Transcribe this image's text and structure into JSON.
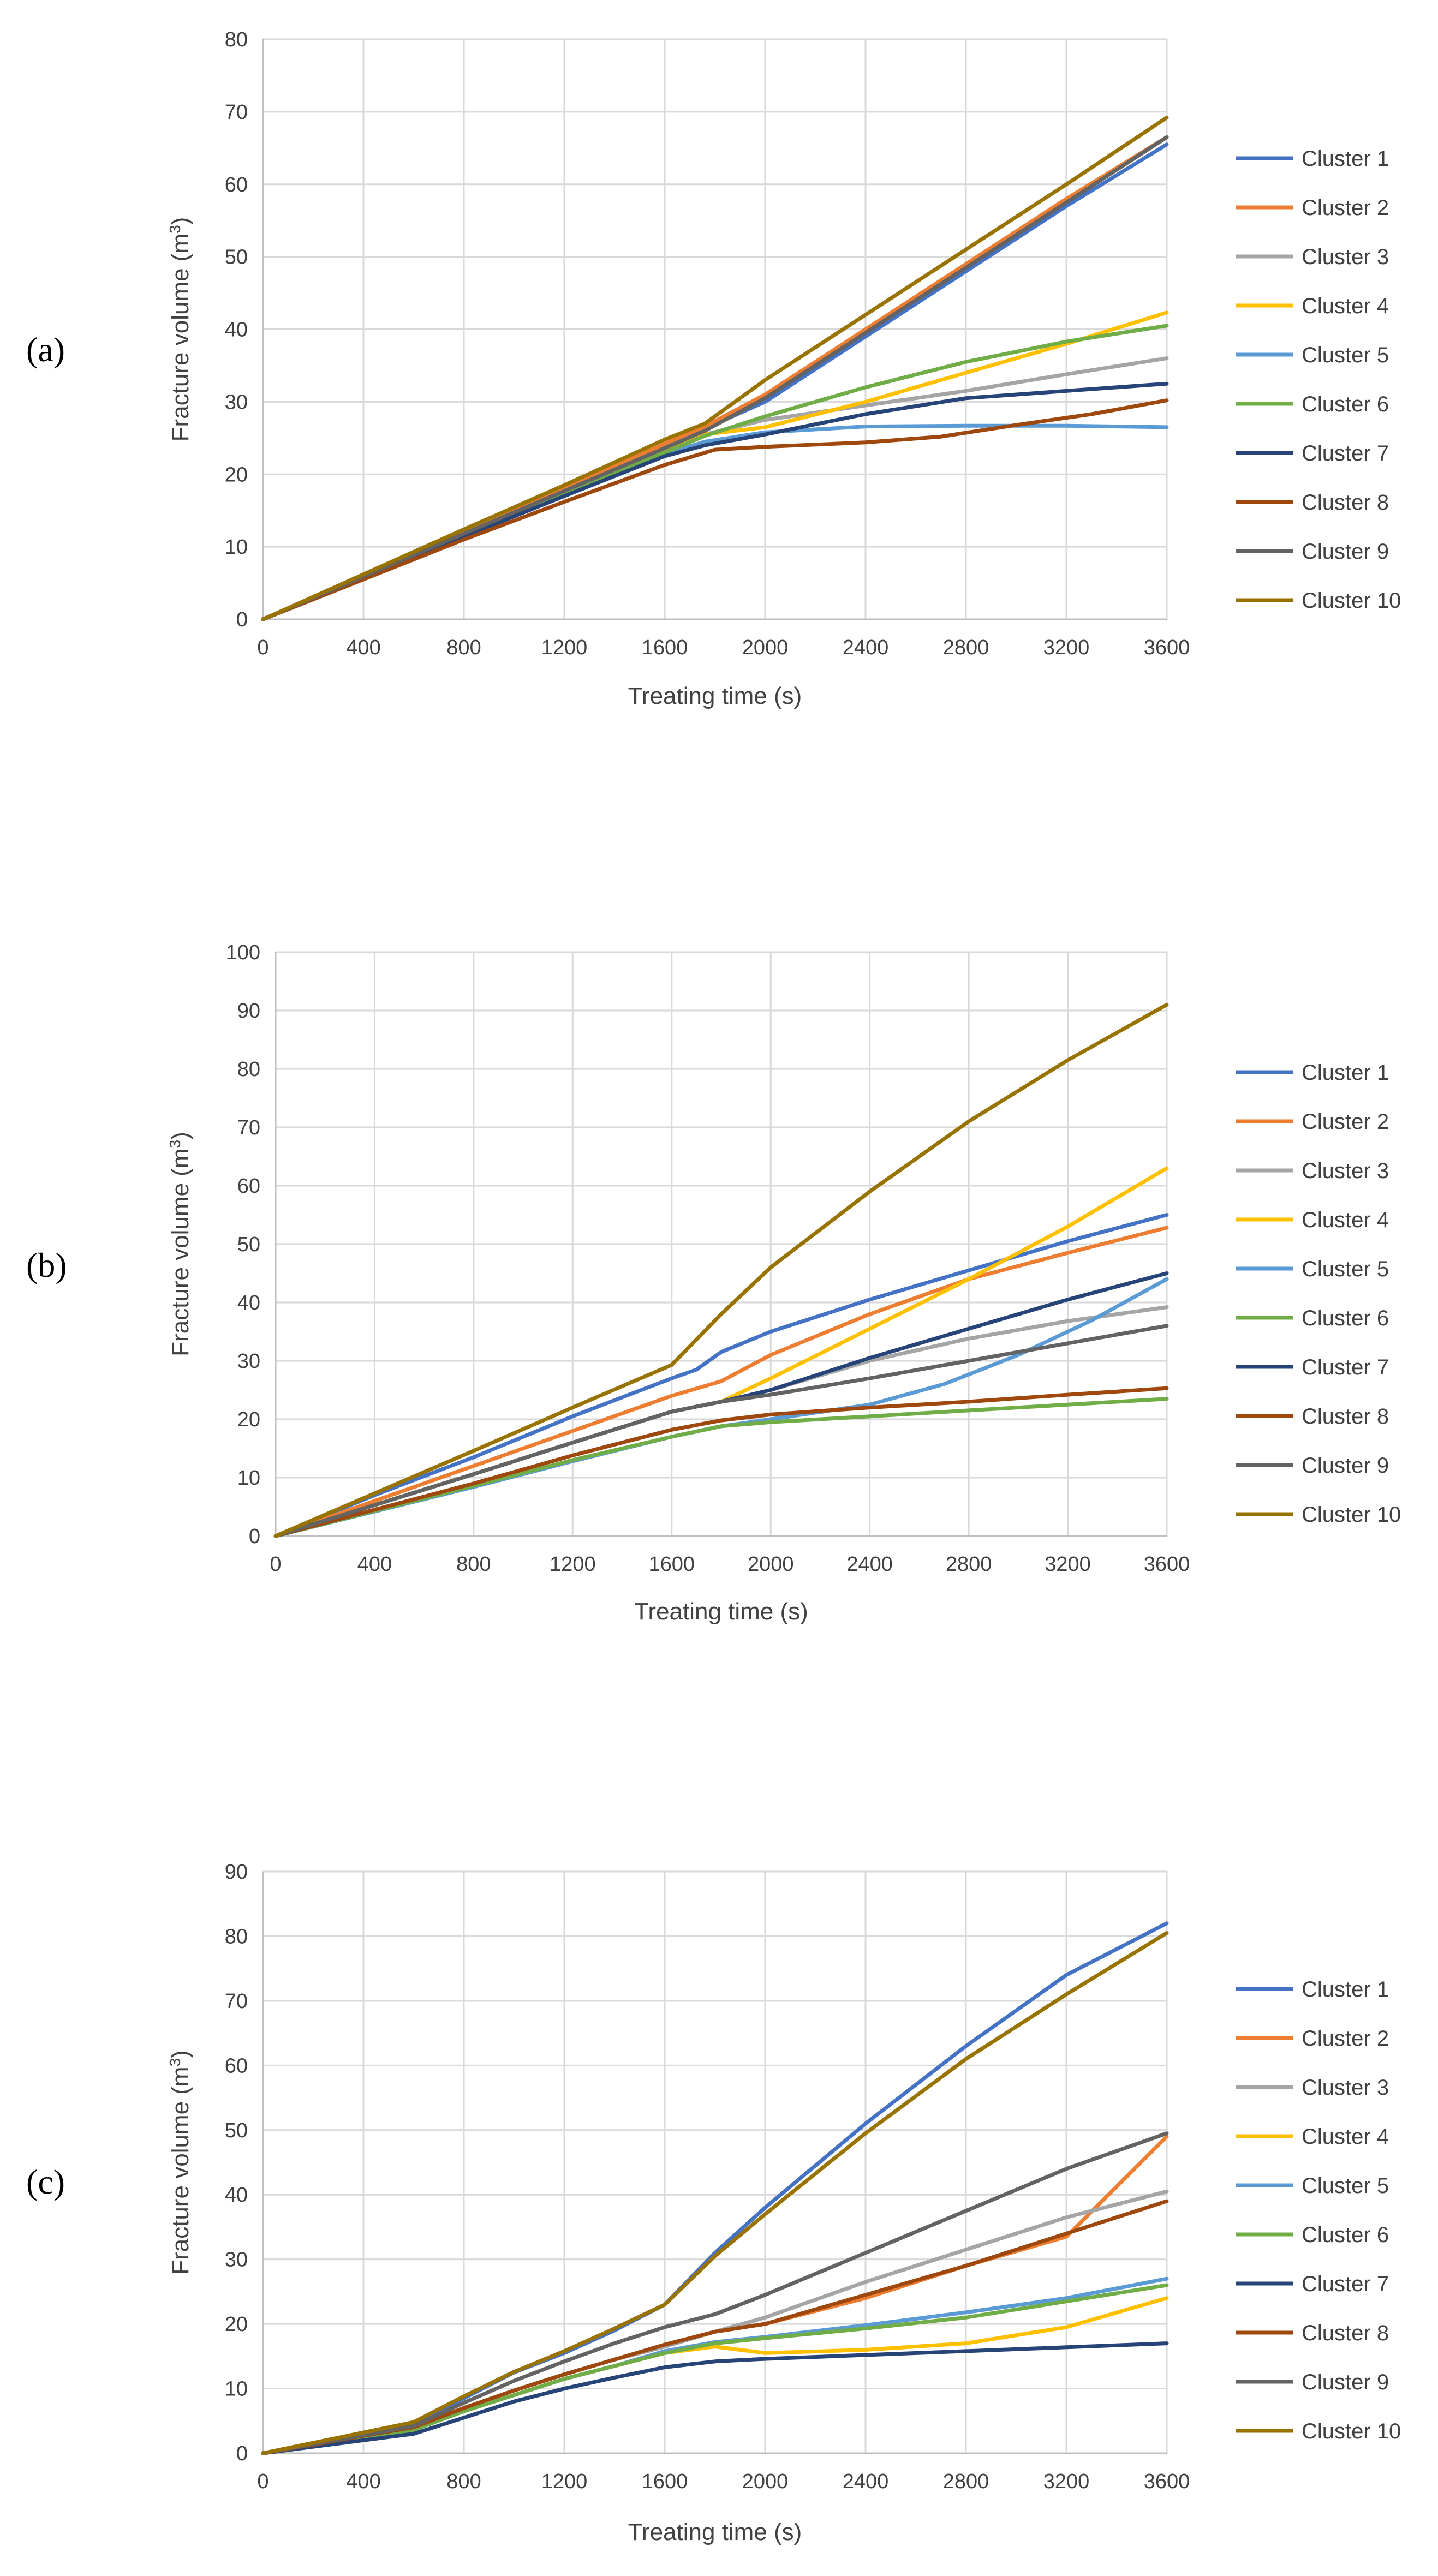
{
  "colors": {
    "grid": "#d9d9d9",
    "axis": "#bfbfbf",
    "series": [
      "#4472c4",
      "#ed7d31",
      "#a5a5a5",
      "#ffc000",
      "#5b9bd5",
      "#70ad47",
      "#264478",
      "#9e480e",
      "#636363",
      "#997300"
    ]
  },
  "chart_data": [
    {
      "panel": "(a)",
      "type": "line",
      "xlabel": "Treating time (s)",
      "ylabel": "Fracture volume (m",
      "ylabel_sup": "3",
      "ylabel_end": ")",
      "xlim": [
        0,
        3600
      ],
      "ylim": [
        0,
        80
      ],
      "xticks": [
        0,
        400,
        800,
        1200,
        1600,
        2000,
        2400,
        2800,
        3200,
        3600
      ],
      "yticks": [
        0,
        10,
        20,
        30,
        40,
        50,
        60,
        70,
        80
      ],
      "series": [
        {
          "name": "Cluster 1",
          "x": [
            0,
            400,
            800,
            1200,
            1600,
            1760,
            2000,
            2400,
            2800,
            3200,
            3600
          ],
          "values": [
            0,
            6,
            12,
            18,
            24,
            26.3,
            30,
            39,
            48,
            57,
            65.5
          ]
        },
        {
          "name": "Cluster 2",
          "x": [
            0,
            400,
            800,
            1200,
            1600,
            1760,
            2000,
            2400,
            2800,
            3200,
            3600
          ],
          "values": [
            0,
            6,
            12,
            18,
            24.2,
            26.6,
            31,
            40,
            49,
            58,
            66.5
          ]
        },
        {
          "name": "Cluster 3",
          "x": [
            0,
            400,
            800,
            1200,
            1600,
            1760,
            2000,
            2400,
            2800,
            3200,
            3600
          ],
          "values": [
            0,
            5.8,
            11.7,
            17.5,
            23.3,
            25.5,
            27.5,
            29.5,
            31.5,
            33.8,
            36
          ]
        },
        {
          "name": "Cluster 4",
          "x": [
            0,
            400,
            800,
            1200,
            1600,
            1760,
            2000,
            2400,
            2800,
            3200,
            3600
          ],
          "values": [
            0,
            5.8,
            11.7,
            17.5,
            23.3,
            25.5,
            26.5,
            30,
            34,
            38,
            42.3
          ]
        },
        {
          "name": "Cluster 5",
          "x": [
            0,
            400,
            800,
            1200,
            1600,
            1760,
            2000,
            2400,
            2800,
            3200,
            3600
          ],
          "values": [
            0,
            5.7,
            11.5,
            17.2,
            22.8,
            24.5,
            25.8,
            26.6,
            26.7,
            26.7,
            26.5
          ]
        },
        {
          "name": "Cluster 6",
          "x": [
            0,
            400,
            800,
            1200,
            1600,
            1760,
            2000,
            2400,
            2800,
            3200,
            3600
          ],
          "values": [
            0,
            5.8,
            11.6,
            17.4,
            23,
            25.3,
            28,
            32,
            35.5,
            38.3,
            40.5
          ]
        },
        {
          "name": "Cluster 7",
          "x": [
            0,
            400,
            800,
            1200,
            1600,
            1760,
            2000,
            2400,
            2800,
            3200,
            3600
          ],
          "values": [
            0,
            5.7,
            11.4,
            17,
            22.5,
            24,
            25.5,
            28.3,
            30.5,
            31.5,
            32.5
          ]
        },
        {
          "name": "Cluster 8",
          "x": [
            0,
            400,
            800,
            1200,
            1600,
            1800,
            2000,
            2400,
            2700,
            3000,
            3300,
            3600
          ],
          "values": [
            0,
            5.5,
            11,
            16.2,
            21.3,
            23.4,
            23.8,
            24.4,
            25.2,
            26.8,
            28.3,
            30.2
          ]
        },
        {
          "name": "Cluster 9",
          "x": [
            0,
            400,
            800,
            1200,
            1600,
            1760,
            2000,
            2400,
            2800,
            3200,
            3600
          ],
          "values": [
            0,
            5.9,
            11.8,
            17.7,
            23.6,
            26,
            30.5,
            39.5,
            48.5,
            57.5,
            66.5
          ]
        },
        {
          "name": "Cluster 10",
          "x": [
            0,
            400,
            800,
            1200,
            1600,
            1760,
            2000,
            2400,
            2800,
            3200,
            3600
          ],
          "values": [
            0,
            6.2,
            12.4,
            18.5,
            24.8,
            27,
            33,
            42,
            51,
            60,
            69.2
          ]
        }
      ]
    },
    {
      "panel": "(b)",
      "type": "line",
      "xlabel": "Treating time (s)",
      "ylabel": "Fracture volume (m",
      "ylabel_sup": "3",
      "ylabel_end": ")",
      "xlim": [
        0,
        3600
      ],
      "ylim": [
        0,
        100
      ],
      "xticks": [
        0,
        400,
        800,
        1200,
        1600,
        2000,
        2400,
        2800,
        3200,
        3600
      ],
      "yticks": [
        0,
        10,
        20,
        30,
        40,
        50,
        60,
        70,
        80,
        90,
        100
      ],
      "series": [
        {
          "name": "Cluster 1",
          "x": [
            0,
            400,
            800,
            1200,
            1600,
            1700,
            1800,
            2000,
            2400,
            2800,
            3200,
            3600
          ],
          "values": [
            0,
            7,
            13.5,
            20.5,
            27,
            28.5,
            31.5,
            35,
            40.5,
            45.5,
            50.5,
            55
          ]
        },
        {
          "name": "Cluster 2",
          "x": [
            0,
            400,
            800,
            1200,
            1600,
            1800,
            2000,
            2400,
            2800,
            3200,
            3600
          ],
          "values": [
            0,
            6,
            12,
            18,
            24,
            26.5,
            31,
            38,
            44,
            48.5,
            52.8
          ]
        },
        {
          "name": "Cluster 3",
          "x": [
            0,
            400,
            800,
            1200,
            1600,
            1800,
            2000,
            2400,
            2800,
            3200,
            3600
          ],
          "values": [
            0,
            5.3,
            10.6,
            16,
            21.3,
            23,
            25,
            30,
            33.8,
            36.8,
            39.2
          ]
        },
        {
          "name": "Cluster 4",
          "x": [
            0,
            400,
            800,
            1200,
            1600,
            1800,
            2000,
            2400,
            2800,
            3200,
            3600
          ],
          "values": [
            0,
            5.3,
            10.6,
            16,
            21.3,
            23,
            27,
            35.5,
            44,
            53,
            63
          ]
        },
        {
          "name": "Cluster 5",
          "x": [
            0,
            400,
            800,
            1200,
            1600,
            1800,
            2000,
            2400,
            2700,
            3000,
            3300,
            3600
          ],
          "values": [
            0,
            4.2,
            8.4,
            12.8,
            17,
            18.8,
            20,
            22.5,
            26,
            31,
            37,
            44
          ]
        },
        {
          "name": "Cluster 6",
          "x": [
            0,
            400,
            800,
            1200,
            1600,
            1800,
            2000,
            2400,
            2800,
            3200,
            3600
          ],
          "values": [
            0,
            4.3,
            8.6,
            13,
            17,
            18.8,
            19.5,
            20.5,
            21.5,
            22.5,
            23.5
          ]
        },
        {
          "name": "Cluster 7",
          "x": [
            0,
            400,
            800,
            1200,
            1600,
            1800,
            2000,
            2400,
            2800,
            3200,
            3600
          ],
          "values": [
            0,
            5.3,
            10.6,
            16,
            21.3,
            23,
            25,
            30.5,
            35.5,
            40.5,
            45
          ]
        },
        {
          "name": "Cluster 8",
          "x": [
            0,
            400,
            800,
            1200,
            1600,
            1800,
            2000,
            2400,
            2800,
            3200,
            3600
          ],
          "values": [
            0,
            4.5,
            9,
            13.8,
            18.2,
            19.8,
            20.8,
            22,
            23,
            24.2,
            25.3
          ]
        },
        {
          "name": "Cluster 9",
          "x": [
            0,
            400,
            800,
            1200,
            1600,
            1800,
            2000,
            2400,
            2800,
            3200,
            3600
          ],
          "values": [
            0,
            5.3,
            10.6,
            16,
            21.3,
            23,
            24.2,
            27,
            30,
            33,
            36
          ]
        },
        {
          "name": "Cluster 10",
          "x": [
            0,
            400,
            800,
            1200,
            1600,
            1800,
            2000,
            2400,
            2800,
            3200,
            3600
          ],
          "values": [
            0,
            7.3,
            14.6,
            22,
            29.3,
            38,
            46,
            59,
            71,
            81.5,
            91
          ]
        }
      ]
    },
    {
      "panel": "(c)",
      "type": "line",
      "xlabel": "Treating time (s)",
      "ylabel": "Fracture volume (m",
      "ylabel_sup": "3",
      "ylabel_end": ")",
      "xlim": [
        0,
        3600
      ],
      "ylim": [
        0,
        90
      ],
      "xticks": [
        0,
        400,
        800,
        1200,
        1600,
        2000,
        2400,
        2800,
        3200,
        3600
      ],
      "yticks": [
        0,
        10,
        20,
        30,
        40,
        50,
        60,
        70,
        80,
        90
      ],
      "series": [
        {
          "name": "Cluster 1",
          "x": [
            0,
            200,
            400,
            600,
            800,
            1000,
            1200,
            1400,
            1600,
            1800,
            2000,
            2400,
            2800,
            3200,
            3600
          ],
          "values": [
            0,
            1.5,
            3,
            4.5,
            8.5,
            12.5,
            15.5,
            19,
            23,
            31,
            38,
            51,
            63,
            74,
            82
          ]
        },
        {
          "name": "Cluster 2",
          "x": [
            0,
            200,
            400,
            600,
            800,
            1000,
            1200,
            1400,
            1600,
            1800,
            2000,
            2400,
            2800,
            3200,
            3600
          ],
          "values": [
            0,
            1.3,
            2.7,
            4,
            7,
            9.7,
            12.2,
            14.5,
            16.5,
            18.8,
            20,
            24,
            29,
            33.5,
            49
          ]
        },
        {
          "name": "Cluster 3",
          "x": [
            0,
            200,
            400,
            600,
            800,
            1000,
            1200,
            1400,
            1600,
            1800,
            2000,
            2400,
            2800,
            3200,
            3600
          ],
          "values": [
            0,
            1.3,
            2.7,
            4,
            7,
            9.7,
            12.2,
            14.5,
            16.5,
            18.8,
            21,
            26.5,
            31.5,
            36.5,
            40.5
          ]
        },
        {
          "name": "Cluster 4",
          "x": [
            0,
            200,
            400,
            600,
            800,
            1000,
            1200,
            1400,
            1600,
            1800,
            2000,
            2400,
            2800,
            3200,
            3600
          ],
          "values": [
            0,
            1.2,
            2.4,
            3.6,
            6.5,
            9,
            11.5,
            13.5,
            15.5,
            16.5,
            15.5,
            16,
            17,
            19.5,
            24
          ]
        },
        {
          "name": "Cluster 5",
          "x": [
            0,
            200,
            400,
            600,
            800,
            1000,
            1200,
            1400,
            1600,
            1800,
            2000,
            2400,
            2800,
            3200,
            3600
          ],
          "values": [
            0,
            1.2,
            2.4,
            3.6,
            6.5,
            9,
            11.5,
            13.5,
            15.8,
            17.2,
            18,
            19.8,
            21.8,
            24,
            27
          ]
        },
        {
          "name": "Cluster 6",
          "x": [
            0,
            200,
            400,
            600,
            800,
            1000,
            1200,
            1400,
            1600,
            1800,
            2000,
            2400,
            2800,
            3200,
            3600
          ],
          "values": [
            0,
            1.2,
            2.4,
            3.6,
            6.5,
            9,
            11.5,
            13.5,
            15.5,
            17,
            17.8,
            19.3,
            21,
            23.5,
            26
          ]
        },
        {
          "name": "Cluster 7",
          "x": [
            0,
            200,
            400,
            600,
            800,
            1000,
            1200,
            1400,
            1600,
            1800,
            2000,
            2400,
            2800,
            3200,
            3600
          ],
          "values": [
            0,
            1,
            2,
            3,
            5.5,
            8,
            10,
            11.7,
            13.3,
            14.2,
            14.6,
            15.2,
            15.8,
            16.4,
            17
          ]
        },
        {
          "name": "Cluster 8",
          "x": [
            0,
            200,
            400,
            600,
            800,
            1000,
            1200,
            1400,
            1600,
            1800,
            2000,
            2400,
            2800,
            3200,
            3600
          ],
          "values": [
            0,
            1.3,
            2.7,
            4,
            7,
            9.7,
            12.2,
            14.5,
            16.8,
            18.8,
            20,
            24.5,
            29,
            34,
            39
          ]
        },
        {
          "name": "Cluster 9",
          "x": [
            0,
            200,
            400,
            600,
            800,
            1000,
            1200,
            1400,
            1600,
            1800,
            2000,
            2400,
            2800,
            3200,
            3600
          ],
          "values": [
            0,
            1.4,
            2.8,
            4.2,
            7.8,
            11.2,
            14.2,
            17,
            19.5,
            21.5,
            24.5,
            31,
            37.5,
            44,
            49.5
          ]
        },
        {
          "name": "Cluster 10",
          "x": [
            0,
            200,
            400,
            600,
            800,
            1000,
            1200,
            1400,
            1600,
            1800,
            2000,
            2400,
            2800,
            3200,
            3600
          ],
          "values": [
            0,
            1.6,
            3.2,
            4.8,
            8.8,
            12.6,
            15.8,
            19.3,
            23,
            30.5,
            37,
            49.5,
            61,
            71,
            80.5
          ]
        }
      ]
    }
  ]
}
